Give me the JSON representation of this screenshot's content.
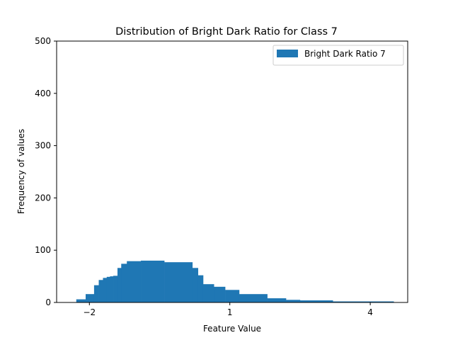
{
  "chart_data": {
    "type": "bar",
    "title": "Distribution of Bright Dark Ratio for Class 7",
    "xlabel": "Feature Value",
    "ylabel": "Frequency of values",
    "xlim": [
      -2.7,
      4.8
    ],
    "ylim": [
      0,
      500
    ],
    "xticks": [
      -2,
      1,
      4
    ],
    "xtick_labels": [
      "−2",
      "1",
      "4"
    ],
    "yticks": [
      0,
      100,
      200,
      300,
      400,
      500
    ],
    "ytick_labels": [
      "0",
      "100",
      "200",
      "300",
      "400",
      "500"
    ],
    "grid": false,
    "legend_position": "top-right",
    "series": [
      {
        "name": "Bright Dark Ratio 7",
        "color": "#1f77b4",
        "bins": [
          {
            "x0": -2.28,
            "x1": -2.08,
            "value": 6
          },
          {
            "x0": -2.08,
            "x1": -1.9,
            "value": 16
          },
          {
            "x0": -1.9,
            "x1": -1.8,
            "value": 33
          },
          {
            "x0": -1.8,
            "x1": -1.71,
            "value": 43
          },
          {
            "x0": -1.71,
            "x1": -1.63,
            "value": 47
          },
          {
            "x0": -1.63,
            "x1": -1.56,
            "value": 49
          },
          {
            "x0": -1.56,
            "x1": -1.49,
            "value": 50
          },
          {
            "x0": -1.49,
            "x1": -1.4,
            "value": 51
          },
          {
            "x0": -1.4,
            "x1": -1.32,
            "value": 66
          },
          {
            "x0": -1.32,
            "x1": -1.2,
            "value": 74
          },
          {
            "x0": -1.2,
            "x1": -0.9,
            "value": 79
          },
          {
            "x0": -0.9,
            "x1": -0.4,
            "value": 80
          },
          {
            "x0": -0.4,
            "x1": 0.2,
            "value": 77
          },
          {
            "x0": 0.2,
            "x1": 0.32,
            "value": 66
          },
          {
            "x0": 0.32,
            "x1": 0.43,
            "value": 52
          },
          {
            "x0": 0.43,
            "x1": 0.66,
            "value": 35
          },
          {
            "x0": 0.66,
            "x1": 0.9,
            "value": 30
          },
          {
            "x0": 0.9,
            "x1": 1.2,
            "value": 24
          },
          {
            "x0": 1.2,
            "x1": 1.8,
            "value": 16
          },
          {
            "x0": 1.8,
            "x1": 2.2,
            "value": 8
          },
          {
            "x0": 2.2,
            "x1": 2.5,
            "value": 5
          },
          {
            "x0": 2.5,
            "x1": 3.2,
            "value": 4
          },
          {
            "x0": 3.2,
            "x1": 4.5,
            "value": 2
          }
        ]
      }
    ]
  }
}
